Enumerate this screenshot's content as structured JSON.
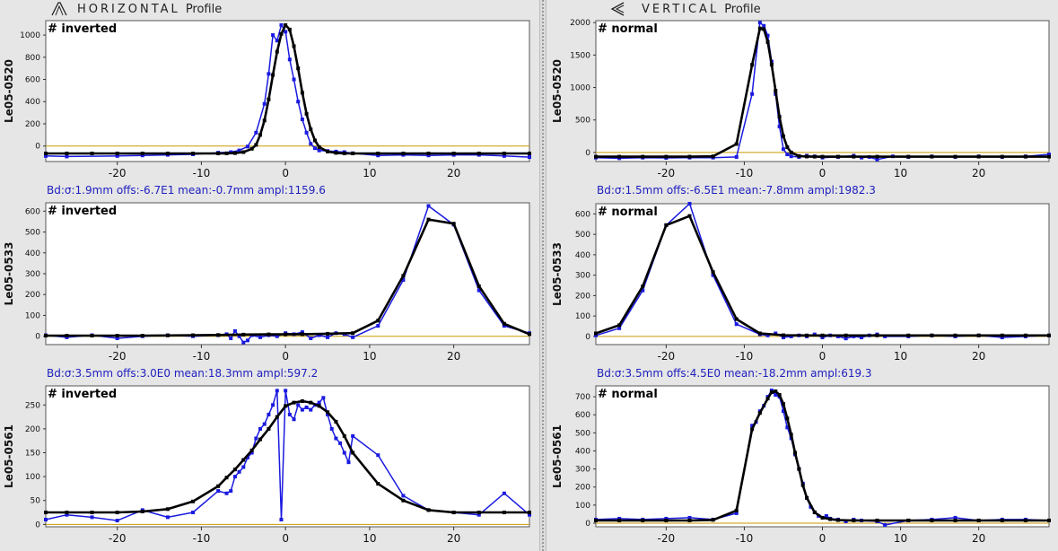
{
  "horizontal": {
    "title_spaced": "HORIZONTAL",
    "title_word": "Profile",
    "icon": "horizontal-profile-icon"
  },
  "vertical": {
    "title_spaced": "VERTICAL",
    "title_word": "Profile",
    "icon": "vertical-profile-icon"
  },
  "colors": {
    "measured": "#1a1ae0",
    "fit": "#000000",
    "zero_line": "#c89a00",
    "fit_label": "#2020c0"
  },
  "chart_data": [
    {
      "type": "line",
      "panel": "horizontal",
      "ylabel": "Le05-0520",
      "mode_label": "# inverted",
      "xlim": [
        -28.5,
        29
      ],
      "ylim": [
        -140,
        1130
      ],
      "xticks": [
        -20,
        -10,
        0,
        10,
        20
      ],
      "yticks": [
        0,
        200,
        400,
        600,
        800,
        1000
      ],
      "fit_label": "Bd:σ:1.9mm offs:-6.7E1 mean:-0.7mm ampl:1159.6",
      "series": [
        {
          "name": "measured",
          "x": [
            -28.5,
            -26,
            -20,
            -17,
            -14,
            -11,
            -8,
            -6.5,
            -5.5,
            -4.5,
            -3.5,
            -2.5,
            -2,
            -1.5,
            -1,
            -0.5,
            0,
            0.5,
            1,
            1.5,
            2,
            2.5,
            3,
            3.5,
            4,
            5,
            6,
            7,
            8,
            11,
            14,
            17,
            20,
            23,
            26,
            29
          ],
          "y": [
            -90,
            -95,
            -90,
            -85,
            -80,
            -75,
            -60,
            -55,
            -40,
            -5,
            120,
            380,
            650,
            1000,
            950,
            1090,
            1030,
            780,
            600,
            400,
            240,
            120,
            20,
            -20,
            -40,
            -45,
            -50,
            -55,
            -65,
            -85,
            -80,
            -85,
            -80,
            -80,
            -90,
            -100
          ]
        },
        {
          "name": "fit",
          "x": [
            -28.5,
            -26,
            -23,
            -20,
            -17,
            -14,
            -11,
            -8,
            -7,
            -6,
            -5,
            -4,
            -3.5,
            -3,
            -2.5,
            -2,
            -1.5,
            -1,
            -0.5,
            0,
            0.5,
            1,
            1.5,
            2,
            2.5,
            3,
            3.5,
            4,
            5,
            6,
            7,
            8,
            11,
            14,
            17,
            20,
            23,
            26,
            29
          ],
          "y": [
            -67,
            -67,
            -67,
            -67,
            -67,
            -67,
            -67,
            -67,
            -66,
            -64,
            -55,
            -25,
            10,
            100,
            230,
            420,
            640,
            850,
            1010,
            1090,
            1050,
            900,
            700,
            480,
            290,
            150,
            50,
            -10,
            -50,
            -62,
            -66,
            -67,
            -67,
            -67,
            -67,
            -67,
            -67,
            -67,
            -67
          ]
        }
      ]
    },
    {
      "type": "line",
      "panel": "vertical",
      "ylabel": "Le05-0520",
      "mode_label": "# normal",
      "xlim": [
        -29,
        29
      ],
      "ylim": [
        -140,
        2030
      ],
      "xticks": [
        -20,
        -10,
        0,
        10,
        20
      ],
      "yticks": [
        0,
        500,
        1000,
        1500,
        2000
      ],
      "fit_label": "Bd:σ:1.5mm offs:-6.5E1 mean:-7.8mm ampl:1982.3",
      "series": [
        {
          "name": "measured",
          "x": [
            -29,
            -26,
            -23,
            -20,
            -17,
            -14,
            -11,
            -9,
            -8,
            -7.5,
            -7,
            -6.5,
            -6,
            -5.5,
            -5,
            -4.5,
            -4,
            -3,
            -2,
            -1,
            0,
            2,
            4,
            5,
            6,
            7,
            9,
            11,
            14,
            17,
            20,
            23,
            26,
            29
          ],
          "y": [
            -80,
            -90,
            -80,
            -85,
            -80,
            -80,
            -70,
            900,
            2000,
            1950,
            1800,
            1400,
            900,
            400,
            50,
            -30,
            -60,
            -70,
            -50,
            -60,
            -80,
            -70,
            -50,
            -80,
            -70,
            -110,
            -60,
            -70,
            -60,
            -70,
            -60,
            -70,
            -60,
            -30
          ]
        },
        {
          "name": "fit",
          "x": [
            -29,
            -26,
            -23,
            -20,
            -17,
            -14,
            -11,
            -9,
            -8,
            -7.5,
            -7,
            -6.5,
            -6,
            -5.5,
            -5,
            -4.5,
            -4,
            -3,
            -2,
            -1,
            0,
            2,
            4,
            7,
            11,
            14,
            17,
            20,
            23,
            26,
            29
          ],
          "y": [
            -65,
            -65,
            -65,
            -65,
            -65,
            -60,
            130,
            1350,
            1910,
            1900,
            1700,
            1350,
            950,
            550,
            250,
            80,
            0,
            -55,
            -63,
            -65,
            -65,
            -65,
            -65,
            -65,
            -65,
            -65,
            -65,
            -65,
            -65,
            -65,
            -65
          ]
        }
      ]
    },
    {
      "type": "line",
      "panel": "horizontal",
      "ylabel": "Le05-0533",
      "mode_label": "# inverted",
      "xlim": [
        -28.5,
        29
      ],
      "ylim": [
        -40,
        640
      ],
      "xticks": [
        -20,
        -10,
        0,
        10,
        20
      ],
      "yticks": [
        0,
        100,
        200,
        300,
        400,
        500,
        600
      ],
      "fit_label": "Bd:σ:3.5mm offs:3.0E0 mean:18.3mm ampl:597.2",
      "series": [
        {
          "name": "measured",
          "x": [
            -28.5,
            -26,
            -23,
            -20,
            -17,
            -14,
            -11,
            -8,
            -7,
            -6.5,
            -6,
            -5.5,
            -5,
            -4.5,
            -4,
            -3,
            -2,
            -1,
            0,
            1,
            2,
            3,
            4,
            5,
            6,
            7,
            8,
            11,
            14,
            17,
            20,
            23,
            26,
            29
          ],
          "y": [
            5,
            -5,
            5,
            -10,
            0,
            5,
            0,
            5,
            10,
            -10,
            25,
            0,
            -30,
            -20,
            5,
            -5,
            5,
            0,
            15,
            10,
            20,
            -10,
            5,
            -5,
            15,
            10,
            -5,
            50,
            270,
            625,
            535,
            220,
            50,
            15
          ]
        },
        {
          "name": "fit",
          "x": [
            -28.5,
            -26,
            -23,
            -20,
            -17,
            -14,
            -11,
            -8,
            -5,
            -2,
            0,
            2,
            5,
            8,
            11,
            14,
            17,
            20,
            23,
            26,
            29
          ],
          "y": [
            3,
            3,
            3,
            3,
            3,
            4,
            5,
            6,
            8,
            9,
            9,
            10,
            12,
            15,
            75,
            290,
            560,
            540,
            240,
            60,
            10
          ]
        }
      ]
    },
    {
      "type": "line",
      "panel": "vertical",
      "ylabel": "Le05-0533",
      "mode_label": "# normal",
      "xlim": [
        -29,
        29
      ],
      "ylim": [
        -40,
        650
      ],
      "xticks": [
        -20,
        -10,
        0,
        10,
        20
      ],
      "yticks": [
        0,
        100,
        200,
        300,
        400,
        500,
        600
      ],
      "fit_label": "Bd:σ:3.5mm offs:4.5E0 mean:-18.2mm ampl:619.3",
      "series": [
        {
          "name": "measured",
          "x": [
            -29,
            -26,
            -23,
            -20,
            -17,
            -14,
            -11,
            -8,
            -7,
            -6,
            -5,
            -4,
            -3,
            -2,
            -1,
            0,
            1,
            2,
            3,
            4,
            5,
            6,
            7,
            8,
            11,
            14,
            17,
            20,
            23,
            26,
            29
          ],
          "y": [
            5,
            40,
            225,
            545,
            650,
            300,
            60,
            10,
            5,
            15,
            -5,
            0,
            5,
            0,
            10,
            -5,
            5,
            0,
            -10,
            0,
            -5,
            5,
            10,
            0,
            0,
            5,
            0,
            5,
            -5,
            0,
            5
          ]
        },
        {
          "name": "fit",
          "x": [
            -29,
            -26,
            -23,
            -20,
            -17,
            -14,
            -11,
            -8,
            -5,
            -2,
            0,
            3,
            7,
            11,
            14,
            17,
            20,
            23,
            26,
            29
          ],
          "y": [
            15,
            55,
            245,
            545,
            590,
            315,
            85,
            15,
            6,
            5,
            5,
            5,
            5,
            5,
            5,
            5,
            5,
            5,
            5,
            5
          ]
        }
      ]
    },
    {
      "type": "line",
      "panel": "horizontal",
      "ylabel": "Le05-0561",
      "mode_label": "# inverted",
      "xlim": [
        -28.5,
        29
      ],
      "ylim": [
        -5,
        290
      ],
      "xticks": [
        -20,
        -10,
        0,
        10,
        20
      ],
      "yticks": [
        0,
        50,
        100,
        150,
        200,
        250
      ],
      "fit_label": "",
      "series": [
        {
          "name": "measured",
          "x": [
            -28.5,
            -26,
            -23,
            -20,
            -17,
            -14,
            -11,
            -8,
            -7,
            -6.5,
            -6,
            -5.5,
            -5,
            -4.5,
            -4,
            -3.5,
            -3,
            -2.5,
            -2,
            -1.5,
            -1,
            -0.5,
            0,
            0.5,
            1,
            1.5,
            2,
            2.5,
            3,
            3.5,
            4,
            4.5,
            5,
            5.5,
            6,
            6.5,
            7,
            7.5,
            8,
            11,
            14,
            17,
            20,
            23,
            26,
            29
          ],
          "y": [
            10,
            20,
            15,
            8,
            30,
            15,
            25,
            70,
            65,
            70,
            100,
            110,
            120,
            140,
            150,
            180,
            200,
            210,
            230,
            250,
            280,
            10,
            280,
            230,
            220,
            250,
            240,
            245,
            240,
            250,
            255,
            265,
            230,
            200,
            180,
            170,
            150,
            130,
            185,
            145,
            60,
            30,
            25,
            20,
            65,
            20
          ]
        },
        {
          "name": "fit",
          "x": [
            -28.5,
            -26,
            -23,
            -20,
            -17,
            -14,
            -11,
            -8,
            -7,
            -6,
            -5,
            -4,
            -3,
            -2,
            -1,
            0,
            1,
            2,
            3,
            4,
            5,
            6,
            7,
            8,
            11,
            14,
            17,
            20,
            23,
            26,
            29
          ],
          "y": [
            25,
            25,
            25,
            25,
            27,
            32,
            48,
            80,
            98,
            115,
            135,
            155,
            178,
            200,
            225,
            248,
            255,
            258,
            255,
            248,
            235,
            215,
            185,
            150,
            85,
            50,
            30,
            25,
            25,
            25,
            25
          ]
        }
      ]
    },
    {
      "type": "line",
      "panel": "vertical",
      "ylabel": "Le05-0561",
      "mode_label": "# normal",
      "xlim": [
        -29,
        29
      ],
      "ylim": [
        -20,
        760
      ],
      "xticks": [
        -20,
        -10,
        0,
        10,
        20
      ],
      "yticks": [
        0,
        100,
        200,
        300,
        400,
        500,
        600,
        700
      ],
      "fit_label": "",
      "series": [
        {
          "name": "measured",
          "x": [
            -29,
            -26,
            -23,
            -20,
            -17,
            -14,
            -11,
            -9,
            -8.5,
            -8,
            -7.5,
            -7,
            -6.5,
            -6,
            -5.5,
            -5,
            -4.5,
            -4,
            -3.5,
            -3,
            -2.5,
            -2,
            -1.5,
            -1,
            -0.5,
            0,
            0.5,
            1,
            2,
            3,
            4,
            5,
            7,
            8,
            11,
            14,
            17,
            20,
            23,
            26,
            29
          ],
          "y": [
            20,
            25,
            20,
            25,
            30,
            20,
            55,
            540,
            560,
            620,
            650,
            700,
            735,
            710,
            700,
            620,
            530,
            470,
            380,
            300,
            220,
            140,
            90,
            60,
            40,
            30,
            40,
            25,
            20,
            10,
            20,
            15,
            10,
            -10,
            15,
            20,
            30,
            15,
            20,
            20,
            15
          ]
        },
        {
          "name": "fit",
          "x": [
            -29,
            -26,
            -23,
            -20,
            -17,
            -14,
            -11,
            -9,
            -8,
            -7,
            -6.5,
            -6,
            -5.5,
            -5,
            -4.5,
            -4,
            -3.5,
            -3,
            -2.5,
            -2,
            -1,
            0,
            1,
            2,
            4,
            7,
            11,
            14,
            17,
            20,
            23,
            26,
            29
          ],
          "y": [
            15,
            15,
            15,
            15,
            15,
            18,
            70,
            520,
            610,
            690,
            725,
            730,
            710,
            660,
            580,
            490,
            390,
            300,
            210,
            140,
            60,
            30,
            22,
            17,
            15,
            15,
            15,
            15,
            15,
            15,
            15,
            15,
            15
          ]
        }
      ]
    }
  ]
}
